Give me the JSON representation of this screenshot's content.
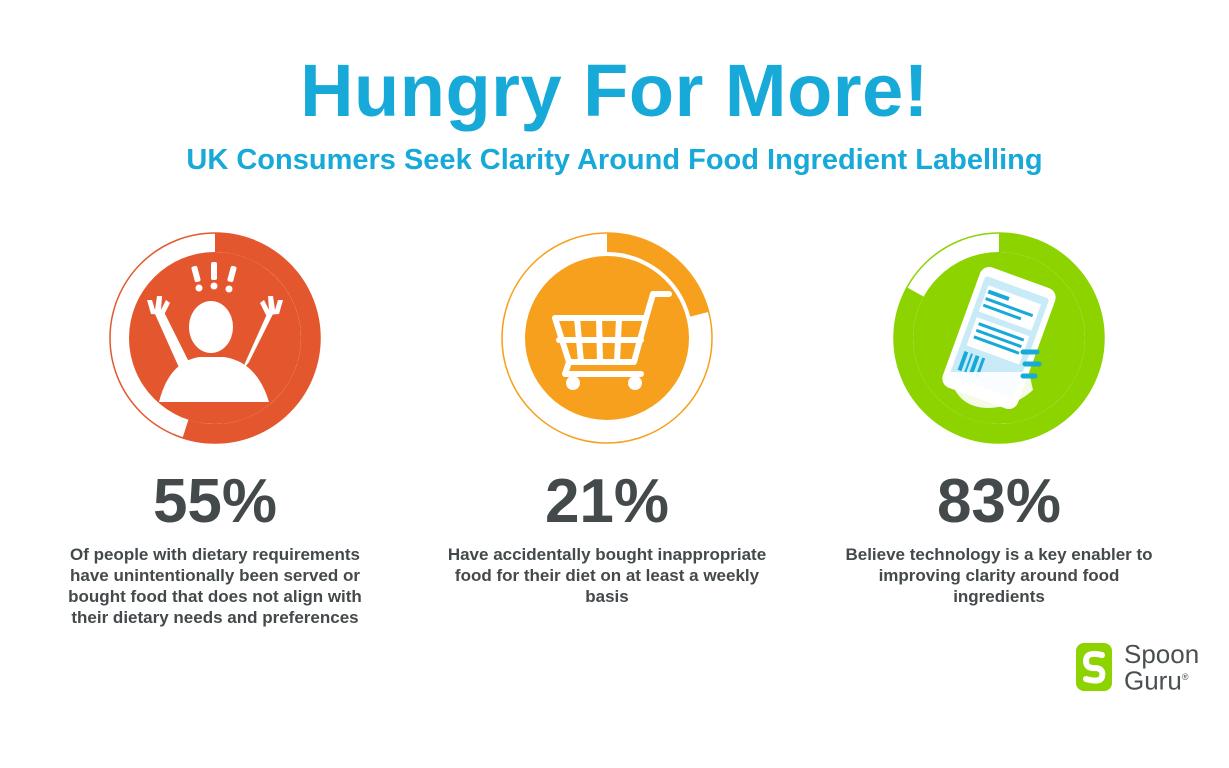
{
  "header": {
    "title": "Hungry For More!",
    "subtitle": "UK Consumers Seek Clarity Around Food Ingredient Labelling"
  },
  "stats": [
    {
      "value": "55%",
      "fraction": 0.55,
      "color": "#e4572e",
      "icon": "frustrated-person-icon",
      "description": "Of people with dietary requirements have unintentionally been served or bought food that does not align with their dietary needs and preferences"
    },
    {
      "value": "21%",
      "fraction": 0.21,
      "color": "#f7a01d",
      "icon": "shopping-cart-icon",
      "description": "Have accidentally bought inappropriate food for their diet on at least a weekly basis"
    },
    {
      "value": "83%",
      "fraction": 0.83,
      "color": "#8cd300",
      "icon": "phone-in-hand-icon",
      "description": "Believe technology is a key enabler to improving clarity around food ingredients"
    }
  ],
  "logo": {
    "line1": "Spoon",
    "line2": "Guru",
    "mark": "®",
    "color": "#8cd300"
  }
}
